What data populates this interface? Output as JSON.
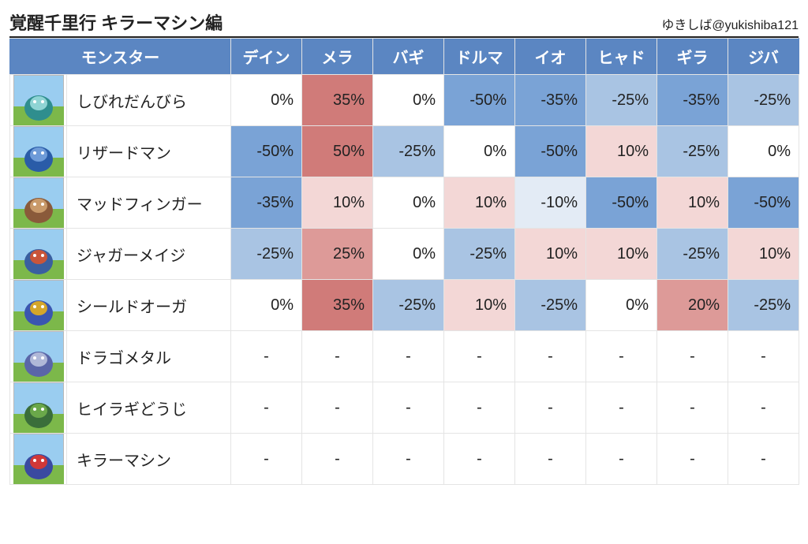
{
  "title": "覚醒千里行 キラーマシン編",
  "credit": "ゆきしば@yukishiba121",
  "header": {
    "monster": "モンスター",
    "elements": [
      "デイン",
      "メラ",
      "バギ",
      "ドルマ",
      "イオ",
      "ヒャド",
      "ギラ",
      "ジバ"
    ]
  },
  "colors": {
    "header_bg": "#5b86c2",
    "header_fg": "#ffffff",
    "grid": "#e4e4e4",
    "blue_strong": "#7aa3d6",
    "blue_mid": "#a9c4e3",
    "blue_light": "#cddcee",
    "blue_vlight": "#e3ebf5",
    "red_strong": "#d07b79",
    "red_mid": "#dd9a98",
    "red_light": "#eec4c3",
    "red_vlight": "#f3d7d6",
    "neutral": "#ffffff",
    "icon_sky": "#9acdf0",
    "icon_grass": "#7cb84a",
    "icon_border": "#b8b8b8"
  },
  "icon_palettes": [
    [
      "#2f8e8e",
      "#8fd4d4"
    ],
    [
      "#2a5ca8",
      "#6e9bd8"
    ],
    [
      "#8a5a3a",
      "#c99a6a"
    ],
    [
      "#3a5fa0",
      "#c9553a"
    ],
    [
      "#3a56b0",
      "#d4a62a"
    ],
    [
      "#5a66a8",
      "#b0b8d8"
    ],
    [
      "#3a6e3a",
      "#6aa84a"
    ],
    [
      "#3a4aa0",
      "#d03838"
    ]
  ],
  "rows": [
    {
      "name": "しびれだんびら",
      "cells": [
        {
          "v": "0%",
          "bg": "neutral"
        },
        {
          "v": "35%",
          "bg": "red_strong"
        },
        {
          "v": "0%",
          "bg": "neutral"
        },
        {
          "v": "-50%",
          "bg": "blue_strong"
        },
        {
          "v": "-35%",
          "bg": "blue_strong"
        },
        {
          "v": "-25%",
          "bg": "blue_mid"
        },
        {
          "v": "-35%",
          "bg": "blue_strong"
        },
        {
          "v": "-25%",
          "bg": "blue_mid"
        }
      ]
    },
    {
      "name": "リザードマン",
      "cells": [
        {
          "v": "-50%",
          "bg": "blue_strong"
        },
        {
          "v": "50%",
          "bg": "red_strong"
        },
        {
          "v": "-25%",
          "bg": "blue_mid"
        },
        {
          "v": "0%",
          "bg": "neutral"
        },
        {
          "v": "-50%",
          "bg": "blue_strong"
        },
        {
          "v": "10%",
          "bg": "red_vlight"
        },
        {
          "v": "-25%",
          "bg": "blue_mid"
        },
        {
          "v": "0%",
          "bg": "neutral"
        }
      ]
    },
    {
      "name": "マッドフィンガー",
      "cells": [
        {
          "v": "-35%",
          "bg": "blue_strong"
        },
        {
          "v": "10%",
          "bg": "red_vlight"
        },
        {
          "v": "0%",
          "bg": "neutral"
        },
        {
          "v": "10%",
          "bg": "red_vlight"
        },
        {
          "v": "-10%",
          "bg": "blue_vlight"
        },
        {
          "v": "-50%",
          "bg": "blue_strong"
        },
        {
          "v": "10%",
          "bg": "red_vlight"
        },
        {
          "v": "-50%",
          "bg": "blue_strong"
        }
      ]
    },
    {
      "name": "ジャガーメイジ",
      "cells": [
        {
          "v": "-25%",
          "bg": "blue_mid"
        },
        {
          "v": "25%",
          "bg": "red_mid"
        },
        {
          "v": "0%",
          "bg": "neutral"
        },
        {
          "v": "-25%",
          "bg": "blue_mid"
        },
        {
          "v": "10%",
          "bg": "red_vlight"
        },
        {
          "v": "10%",
          "bg": "red_vlight"
        },
        {
          "v": "-25%",
          "bg": "blue_mid"
        },
        {
          "v": "10%",
          "bg": "red_vlight"
        }
      ]
    },
    {
      "name": "シールドオーガ",
      "cells": [
        {
          "v": "0%",
          "bg": "neutral"
        },
        {
          "v": "35%",
          "bg": "red_strong"
        },
        {
          "v": "-25%",
          "bg": "blue_mid"
        },
        {
          "v": "10%",
          "bg": "red_vlight"
        },
        {
          "v": "-25%",
          "bg": "blue_mid"
        },
        {
          "v": "0%",
          "bg": "neutral"
        },
        {
          "v": "20%",
          "bg": "red_mid"
        },
        {
          "v": "-25%",
          "bg": "blue_mid"
        }
      ]
    },
    {
      "name": "ドラゴメタル",
      "cells": [
        {
          "v": "-",
          "bg": "neutral"
        },
        {
          "v": "-",
          "bg": "neutral"
        },
        {
          "v": "-",
          "bg": "neutral"
        },
        {
          "v": "-",
          "bg": "neutral"
        },
        {
          "v": "-",
          "bg": "neutral"
        },
        {
          "v": "-",
          "bg": "neutral"
        },
        {
          "v": "-",
          "bg": "neutral"
        },
        {
          "v": "-",
          "bg": "neutral"
        }
      ]
    },
    {
      "name": "ヒイラギどうじ",
      "cells": [
        {
          "v": "-",
          "bg": "neutral"
        },
        {
          "v": "-",
          "bg": "neutral"
        },
        {
          "v": "-",
          "bg": "neutral"
        },
        {
          "v": "-",
          "bg": "neutral"
        },
        {
          "v": "-",
          "bg": "neutral"
        },
        {
          "v": "-",
          "bg": "neutral"
        },
        {
          "v": "-",
          "bg": "neutral"
        },
        {
          "v": "-",
          "bg": "neutral"
        }
      ]
    },
    {
      "name": "キラーマシン",
      "cells": [
        {
          "v": "-",
          "bg": "neutral"
        },
        {
          "v": "-",
          "bg": "neutral"
        },
        {
          "v": "-",
          "bg": "neutral"
        },
        {
          "v": "-",
          "bg": "neutral"
        },
        {
          "v": "-",
          "bg": "neutral"
        },
        {
          "v": "-",
          "bg": "neutral"
        },
        {
          "v": "-",
          "bg": "neutral"
        },
        {
          "v": "-",
          "bg": "neutral"
        }
      ]
    }
  ]
}
